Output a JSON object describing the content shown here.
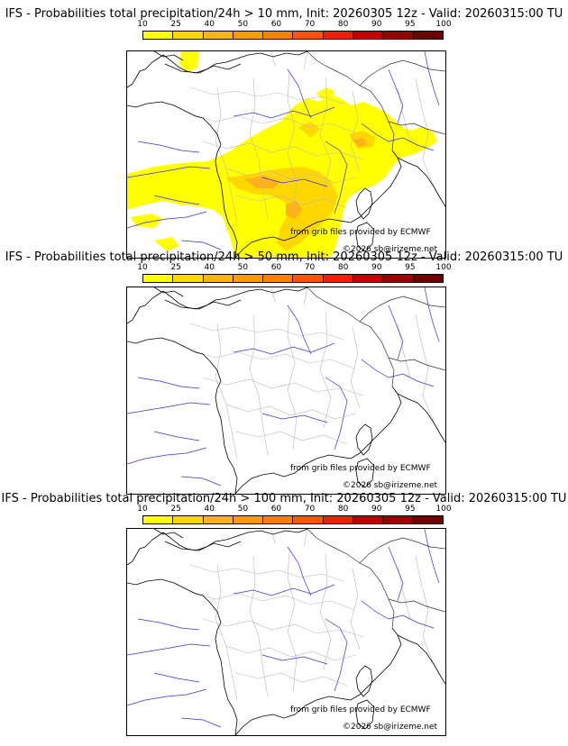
{
  "colorbar": {
    "labels": [
      "10",
      "25",
      "40",
      "50",
      "60",
      "70",
      "80",
      "90",
      "95",
      "100"
    ],
    "colors": [
      "#ffff00",
      "#ffd700",
      "#ffb21a",
      "#ff9a00",
      "#ff7f00",
      "#ff5500",
      "#ee2200",
      "#c40000",
      "#9a0000",
      "#6e0000"
    ]
  },
  "panels": [
    {
      "title": "IFS - Probabilities total precipitation/24h > 10 mm, Init: 20260305 12z - Valid: 20260315:00 TU",
      "credit_line1": "from grib files provided by ECMWF",
      "credit_line2": "©2026 sb@irizeme.net",
      "has_precip": true
    },
    {
      "title": "IFS - Probabilities total precipitation/24h > 50 mm, Init: 20260305 12z - Valid: 20260315:00 TU",
      "credit_line1": "from grib files provided by ECMWF",
      "credit_line2": "©2026 sb@irizeme.net",
      "has_precip": false
    },
    {
      "title": "IFS - Probabilities total precipitation/24h > 100 mm, Init: 20260305 12z - Valid: 20260315:00 TU",
      "credit_line1": "from grib files provided by ECMWF",
      "credit_line2": "©2026 sb@irizeme.net",
      "has_precip": false
    }
  ]
}
